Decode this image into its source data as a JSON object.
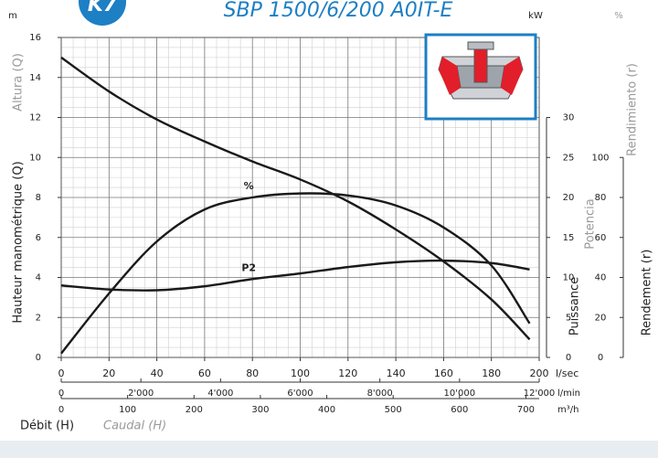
{
  "chart_data": {
    "type": "line",
    "badge": "K7",
    "title": "SBP 1500/6/200 A0IT-E",
    "y_unit": "m",
    "y2_unit": "kW",
    "y3_unit": "%",
    "y_titles": [
      "Altura (Q)",
      "Hauteur manométrique (Q)"
    ],
    "y2_titles": [
      "Potencia",
      "Puissance"
    ],
    "y3_titles": [
      "Rendimiento (r)",
      "Rendement (r)"
    ],
    "x_titles": [
      "Débit (H)",
      "Caudal (H)"
    ],
    "x_unit": "l/sec",
    "x": [
      0,
      20,
      40,
      60,
      80,
      100,
      120,
      140,
      160,
      180,
      196
    ],
    "xlim": [
      0,
      200
    ],
    "xticks": [
      0,
      20,
      40,
      60,
      80,
      100,
      120,
      140,
      160,
      180,
      200
    ],
    "secondary_x": [
      {
        "unit": "l/min",
        "lim": [
          0,
          12000
        ],
        "ticks": [
          0,
          {
            "value": 2000,
            "label": "2'000"
          },
          {
            "value": 4000,
            "label": "4'000"
          },
          {
            "value": 6000,
            "label": "6'000"
          },
          {
            "value": 8000,
            "label": "8'000"
          },
          {
            "value": 10000,
            "label": "10'000"
          },
          {
            "value": 12000,
            "label": "12'000"
          }
        ]
      },
      {
        "unit": "m³/h",
        "lim": [
          0,
          720
        ],
        "ticks": [
          0,
          100,
          200,
          300,
          400,
          500,
          600,
          700
        ]
      }
    ],
    "ylim": [
      0,
      16
    ],
    "yticks": [
      0,
      2,
      4,
      6,
      8,
      10,
      12,
      14,
      16
    ],
    "y2lim": [
      0,
      40
    ],
    "y2ticks": [
      0,
      5,
      10,
      15,
      20,
      25,
      30
    ],
    "y3lim": [
      0,
      160
    ],
    "y3ticks": [
      0,
      20,
      40,
      60,
      80,
      100
    ],
    "grid": true,
    "minor_grid": 4,
    "series": [
      {
        "color": "#1a1a1a",
        "values": [
          15,
          13.3,
          11.9,
          10.8,
          9.8,
          8.9,
          7.8,
          6.4,
          4.8,
          2.9,
          0.9
        ]
      },
      {
        "name": "%",
        "axis": "y3",
        "color": "#1a1a1a",
        "values": [
          2,
          32,
          58,
          74,
          80,
          82,
          81,
          76,
          65,
          46,
          17
        ]
      },
      {
        "name": "P2",
        "axis": "y2",
        "color": "#1a1a1a",
        "values": [
          9.0,
          8.5,
          8.4,
          8.9,
          9.8,
          10.5,
          11.3,
          11.9,
          12.1,
          11.8,
          11.0
        ]
      }
    ]
  }
}
